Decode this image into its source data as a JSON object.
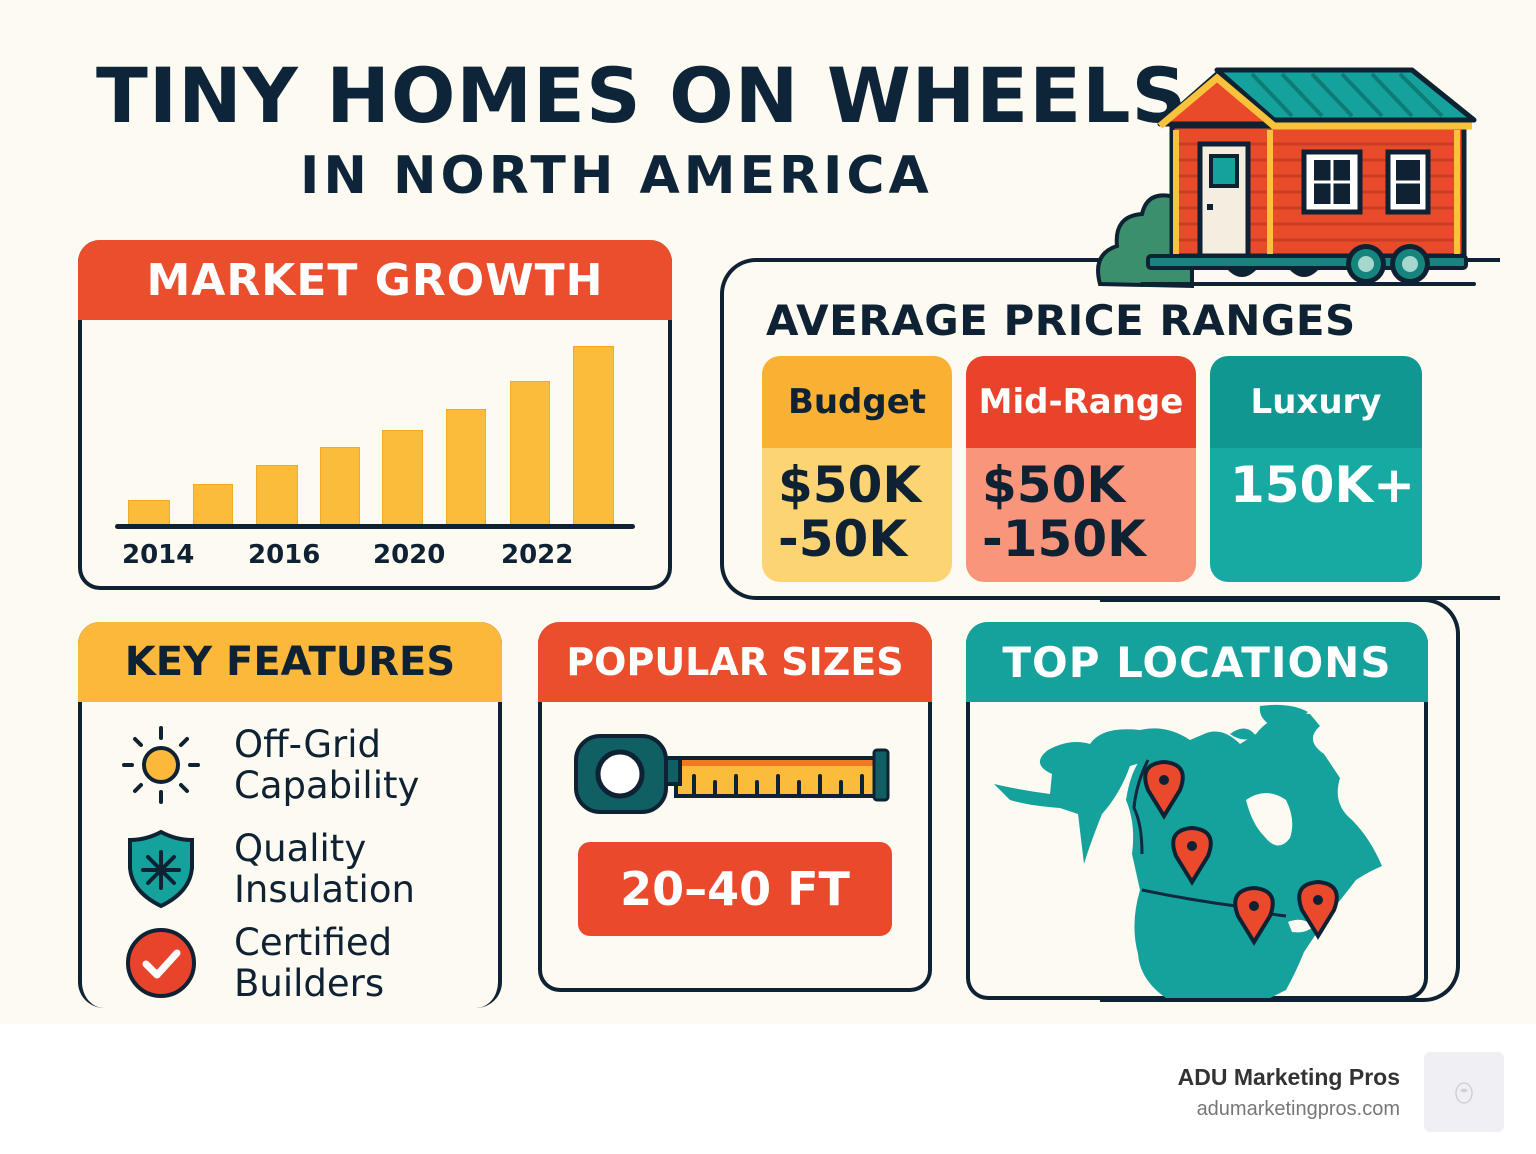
{
  "title": {
    "main": "TINY HOMES ON WHEELS",
    "sub": "IN NORTH AMERICA"
  },
  "icons": {
    "hero": "tiny-house-on-trailer-icon",
    "sun": "sun-icon",
    "shield": "snowflake-shield-icon",
    "check": "check-circle-icon",
    "tape": "tape-measure-icon",
    "map": "north-america-map-icon",
    "pin": "location-pin-icon"
  },
  "colors": {
    "background": "#fdfaf1",
    "ink": "#0f2233",
    "red": "#ea4e2c",
    "yellow": "#fbb83a",
    "teal": "#16a29c",
    "bar": "#fbbb3b"
  },
  "market_growth": {
    "header": "MARKET GROWTH"
  },
  "chart_data": {
    "type": "bar",
    "title": "MARKET GROWTH",
    "categories": [
      "bar1",
      "bar2",
      "bar3",
      "bar4",
      "bar5",
      "bar6",
      "bar7",
      "bar8"
    ],
    "values": [
      25,
      41,
      60,
      78,
      95,
      116,
      144,
      179
    ],
    "value_units": "relative bar height (px), no y-axis scale shown",
    "tick_labels": [
      "2014",
      "2016",
      "2020",
      "2022"
    ],
    "tick_positions_bar_index": [
      0.2,
      2,
      4,
      6
    ],
    "xlabel": "",
    "ylabel": "",
    "grid": false,
    "legend": null,
    "ylim": [
      0,
      190
    ]
  },
  "price_ranges": {
    "title": "AVERAGE PRICE RANGES",
    "tiers": [
      {
        "label": "Budget",
        "value_line1": "$50K",
        "value_line2": "-50K",
        "header_color": "#fab133",
        "body_color": "#fdd474",
        "label_color": "#0f2233",
        "value_color": "#0f2233"
      },
      {
        "label": "Mid-Range",
        "value_line1": "$50K",
        "value_line2": "-150K",
        "header_color": "#e9432b",
        "body_color": "#f8957a",
        "label_color": "#ffffff",
        "value_color": "#0f2233"
      },
      {
        "label": "Luxury",
        "value_line1": "150K+",
        "value_line2": "",
        "header_color": "#109792",
        "body_color": "#17aaa3",
        "label_color": "#ffffff",
        "value_color": "#ffffff"
      }
    ]
  },
  "key_features": {
    "header": "KEY FEATURES",
    "items": [
      {
        "line1": "Off-Grid",
        "line2": "Capability",
        "icon": "sun-icon"
      },
      {
        "line1": "Quality",
        "line2": "Insulation",
        "icon": "snowflake-shield-icon"
      },
      {
        "line1": "Certified",
        "line2": "Builders",
        "icon": "check-circle-icon"
      }
    ]
  },
  "popular_sizes": {
    "header": "POPULAR SIZES",
    "value": "20–40 FT"
  },
  "top_locations": {
    "header": "TOP LOCATIONS",
    "pin_count": 4
  },
  "footer": {
    "brand": "ADU Marketing Pros",
    "url": "adumarketingpros.com"
  }
}
